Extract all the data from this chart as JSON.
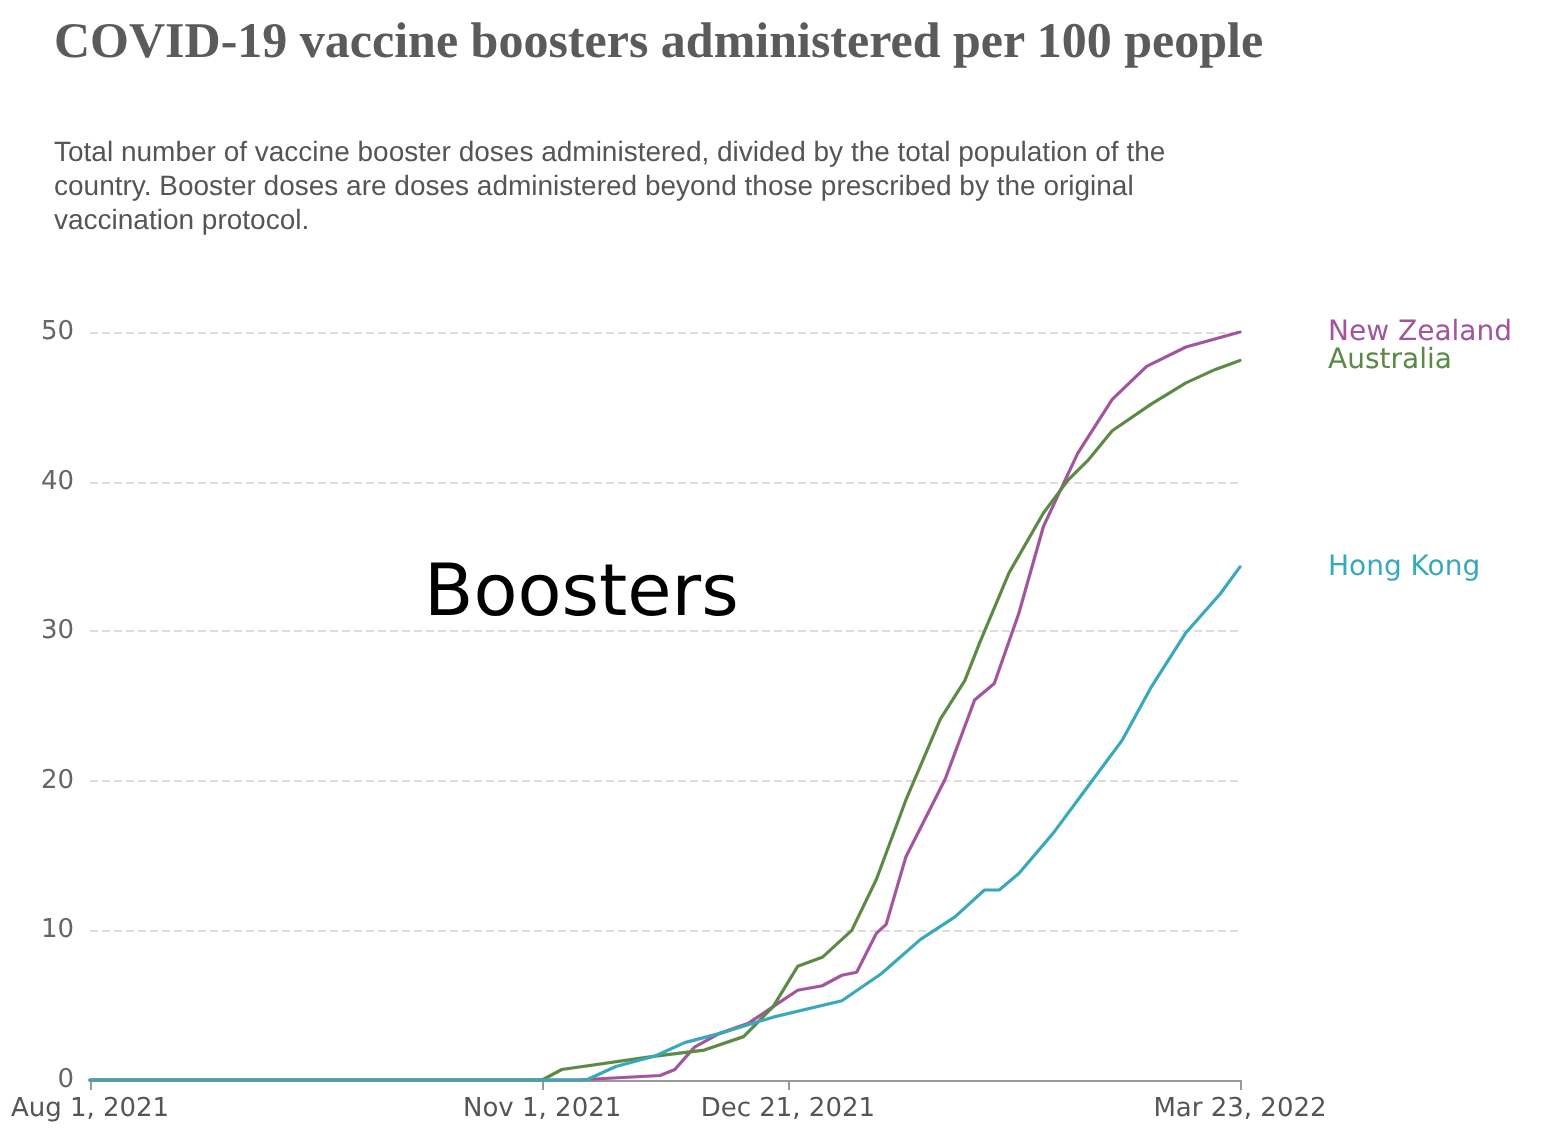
{
  "chart_data": {
    "type": "line",
    "title": "COVID-19 vaccine boosters administered per 100 people",
    "subtitle": "Total number of vaccine booster doses administered, divided by the total population of the country. Booster doses are doses administered beyond those prescribed by the original vaccination protocol.",
    "annotations": [
      "Boosters"
    ],
    "xlim": [
      "2021-08-01",
      "2022-03-23"
    ],
    "xticks": [
      {
        "value": "2021-08-01",
        "label": "Aug 1, 2021"
      },
      {
        "value": "2021-11-01",
        "label": "Nov 1, 2021"
      },
      {
        "value": "2021-12-21",
        "label": "Dec 21, 2021"
      },
      {
        "value": "2022-03-23",
        "label": "Mar 23, 2022"
      }
    ],
    "ylim": [
      0,
      50
    ],
    "yticks": [
      0,
      10,
      20,
      30,
      40,
      50
    ],
    "grid": "y",
    "marker": "none",
    "series": [
      {
        "name": "New Zealand",
        "color": "#a2559c",
        "x": [
          "2021-08-01",
          "2021-11-08",
          "2021-11-25",
          "2021-11-28",
          "2021-12-02",
          "2021-12-07",
          "2021-12-13",
          "2021-12-18",
          "2021-12-23",
          "2021-12-28",
          "2022-01-01",
          "2022-01-04",
          "2022-01-08",
          "2022-01-10",
          "2022-01-14",
          "2022-01-22",
          "2022-01-28",
          "2022-02-01",
          "2022-02-06",
          "2022-02-11",
          "2022-02-18",
          "2022-02-25",
          "2022-03-04",
          "2022-03-12",
          "2022-03-23"
        ],
        "values": [
          0,
          0,
          0.3,
          0.7,
          2.2,
          3.1,
          3.8,
          4.9,
          6.0,
          6.3,
          7.0,
          7.2,
          9.8,
          10.4,
          14.9,
          20.1,
          25.4,
          26.5,
          31.2,
          37.0,
          41.9,
          45.5,
          47.7,
          49.0,
          50.0
        ]
      },
      {
        "name": "Australia",
        "color": "#5b8a45",
        "x": [
          "2021-08-01",
          "2021-11-01",
          "2021-11-05",
          "2021-11-24",
          "2021-12-04",
          "2021-12-12",
          "2021-12-18",
          "2021-12-23",
          "2021-12-28",
          "2021-12-31",
          "2022-01-03",
          "2022-01-08",
          "2022-01-14",
          "2022-01-21",
          "2022-01-26",
          "2022-01-29",
          "2022-02-04",
          "2022-02-11",
          "2022-02-16",
          "2022-02-20",
          "2022-02-25",
          "2022-03-05",
          "2022-03-12",
          "2022-03-18",
          "2022-03-23"
        ],
        "values": [
          0,
          0,
          0.7,
          1.6,
          2.0,
          2.9,
          4.9,
          7.6,
          8.2,
          9.1,
          10.0,
          13.4,
          18.7,
          24.1,
          26.7,
          29.2,
          33.9,
          37.9,
          40.1,
          41.4,
          43.4,
          45.2,
          46.6,
          47.5,
          48.1
        ]
      },
      {
        "name": "Hong Kong",
        "color": "#38a9ba",
        "x": [
          "2021-08-01",
          "2021-11-10",
          "2021-11-16",
          "2021-11-24",
          "2021-11-30",
          "2021-12-07",
          "2021-12-18",
          "2022-01-01",
          "2022-01-09",
          "2022-01-17",
          "2022-01-24",
          "2022-01-30",
          "2022-02-02",
          "2022-02-06",
          "2022-02-13",
          "2022-02-20",
          "2022-02-27",
          "2022-03-05",
          "2022-03-12",
          "2022-03-19",
          "2022-03-23"
        ],
        "values": [
          0,
          0,
          0.9,
          1.6,
          2.5,
          3.1,
          4.2,
          5.3,
          7.1,
          9.4,
          10.9,
          12.7,
          12.7,
          13.8,
          16.5,
          19.6,
          22.7,
          26.3,
          29.9,
          32.5,
          34.3
        ]
      }
    ]
  }
}
